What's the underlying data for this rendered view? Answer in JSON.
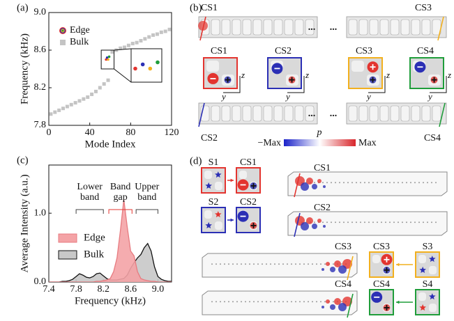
{
  "chart_data": [
    {
      "type": "scatter",
      "label": "(a)",
      "x_label": "Mode Index",
      "y_label": "Frequency (kHz)",
      "xlim": [
        0,
        120
      ],
      "xticks": [
        0,
        40,
        80,
        120
      ],
      "ylim": [
        7.8,
        9.0
      ],
      "yticks": [
        7.8,
        8.2,
        8.6,
        {
          "value": 9,
          "label": "9.0"
        }
      ],
      "series": [
        {
          "name": "Edge",
          "colors": [
            "#e3342f",
            "#2b2fb5",
            "#f2b01e",
            "#1f9d3a"
          ],
          "x": [
            56,
            57,
            58,
            59
          ],
          "values": [
            8.5,
            8.52,
            8.5,
            8.53
          ]
        },
        {
          "name": "Bulk",
          "color": "#c4c4c4",
          "x": [
            2,
            6,
            10,
            14,
            18,
            22,
            26,
            30,
            34,
            38,
            42,
            46,
            50,
            54,
            58,
            62,
            66,
            70,
            74,
            78,
            82,
            86,
            90,
            94,
            98,
            102,
            106,
            110,
            114,
            118
          ],
          "values": [
            7.92,
            7.94,
            7.96,
            7.98,
            8.0,
            8.02,
            8.04,
            8.06,
            8.08,
            8.1,
            8.13,
            8.16,
            8.2,
            8.24,
            8.28,
            8.58,
            8.6,
            8.62,
            8.63,
            8.65,
            8.67,
            8.68,
            8.7,
            8.72,
            8.74,
            8.76,
            8.77,
            8.79,
            8.8,
            8.82
          ]
        }
      ]
    },
    {
      "type": "area",
      "label": "(c)",
      "x_label": "Frequency (kHz)",
      "y_label": "Average Intensity (a.u.)",
      "xlim": [
        7.4,
        9.2
      ],
      "xticks": [
        7.4,
        7.8,
        8.2,
        8.6,
        {
          "value": 9,
          "label": "9.0"
        }
      ],
      "ylim": [
        0,
        1.7
      ],
      "yticks": [
        {
          "value": 0,
          "label": "0.0"
        },
        {
          "value": 1,
          "label": "1.0"
        }
      ],
      "x": [
        7.4,
        7.45,
        7.5,
        7.55,
        7.6,
        7.65,
        7.7,
        7.75,
        7.8,
        7.85,
        7.9,
        7.95,
        8.0,
        8.05,
        8.1,
        8.15,
        8.2,
        8.25,
        8.3,
        8.35,
        8.4,
        8.45,
        8.5,
        8.55,
        8.6,
        8.65,
        8.7,
        8.75,
        8.8,
        8.85,
        8.9,
        8.95,
        9.0,
        9.05,
        9.1,
        9.15,
        9.2
      ],
      "series": [
        {
          "name": "Edge",
          "color": "#f4a3a6",
          "line_color": "#e77b80",
          "values": [
            0,
            0,
            0,
            0,
            0,
            0,
            0,
            0,
            0,
            0,
            0,
            0,
            0,
            0,
            0.01,
            0.01,
            0.02,
            0.03,
            0.05,
            0.15,
            0.35,
            0.75,
            1.2,
            0.8,
            0.45,
            0.38,
            0.15,
            0.05,
            0.03,
            0.02,
            0.01,
            0.01,
            0,
            0,
            0,
            0,
            0
          ]
        },
        {
          "name": "Bulk",
          "color": "#c8c8c8",
          "line_color": "#111111",
          "values": [
            0,
            0,
            0,
            0,
            0.01,
            0.01,
            0.02,
            0.04,
            0.08,
            0.12,
            0.1,
            0.07,
            0.06,
            0.08,
            0.12,
            0.13,
            0.09,
            0.05,
            0.03,
            0.03,
            0.03,
            0.04,
            0.05,
            0.1,
            0.2,
            0.28,
            0.35,
            0.4,
            0.5,
            0.56,
            0.45,
            0.22,
            0.08,
            0.04,
            0.02,
            0.01,
            0.01
          ]
        }
      ],
      "annotations": [
        {
          "lines": [
            "Lower",
            "band"
          ],
          "range": [
            7.8,
            8.2
          ],
          "color": "#444444"
        },
        {
          "lines": [
            "Band",
            "gap"
          ],
          "range": [
            8.28,
            8.62
          ],
          "color": "#e3342f"
        },
        {
          "lines": [
            "Upper",
            "band"
          ],
          "range": [
            8.68,
            9.0
          ],
          "color": "#444444"
        }
      ]
    }
  ],
  "panel_b": {
    "label": "(b)",
    "modes": [
      {
        "name": "CS1",
        "color": "#e3342f"
      },
      {
        "name": "CS2",
        "color": "#2b2fb5"
      },
      {
        "name": "CS3",
        "color": "#f2b01e"
      },
      {
        "name": "CS4",
        "color": "#1f9d3a"
      }
    ],
    "ellipsis": "...",
    "axis_y": "y",
    "axis_z": "z",
    "colorbar": {
      "title": "p",
      "min_label": "−Max",
      "max_label": "Max"
    }
  },
  "panel_d": {
    "label": "(d)",
    "modes": [
      {
        "name": "CS1",
        "color": "#e3342f"
      },
      {
        "name": "CS2",
        "color": "#2b2fb5"
      },
      {
        "name": "CS3",
        "color": "#f2b01e"
      },
      {
        "name": "CS4",
        "color": "#1f9d3a"
      }
    ],
    "sources": [
      {
        "name": "S1",
        "color": "#e3342f"
      },
      {
        "name": "S2",
        "color": "#2b2fb5"
      },
      {
        "name": "S3",
        "color": "#f2b01e"
      },
      {
        "name": "S4",
        "color": "#1f9d3a"
      }
    ]
  }
}
